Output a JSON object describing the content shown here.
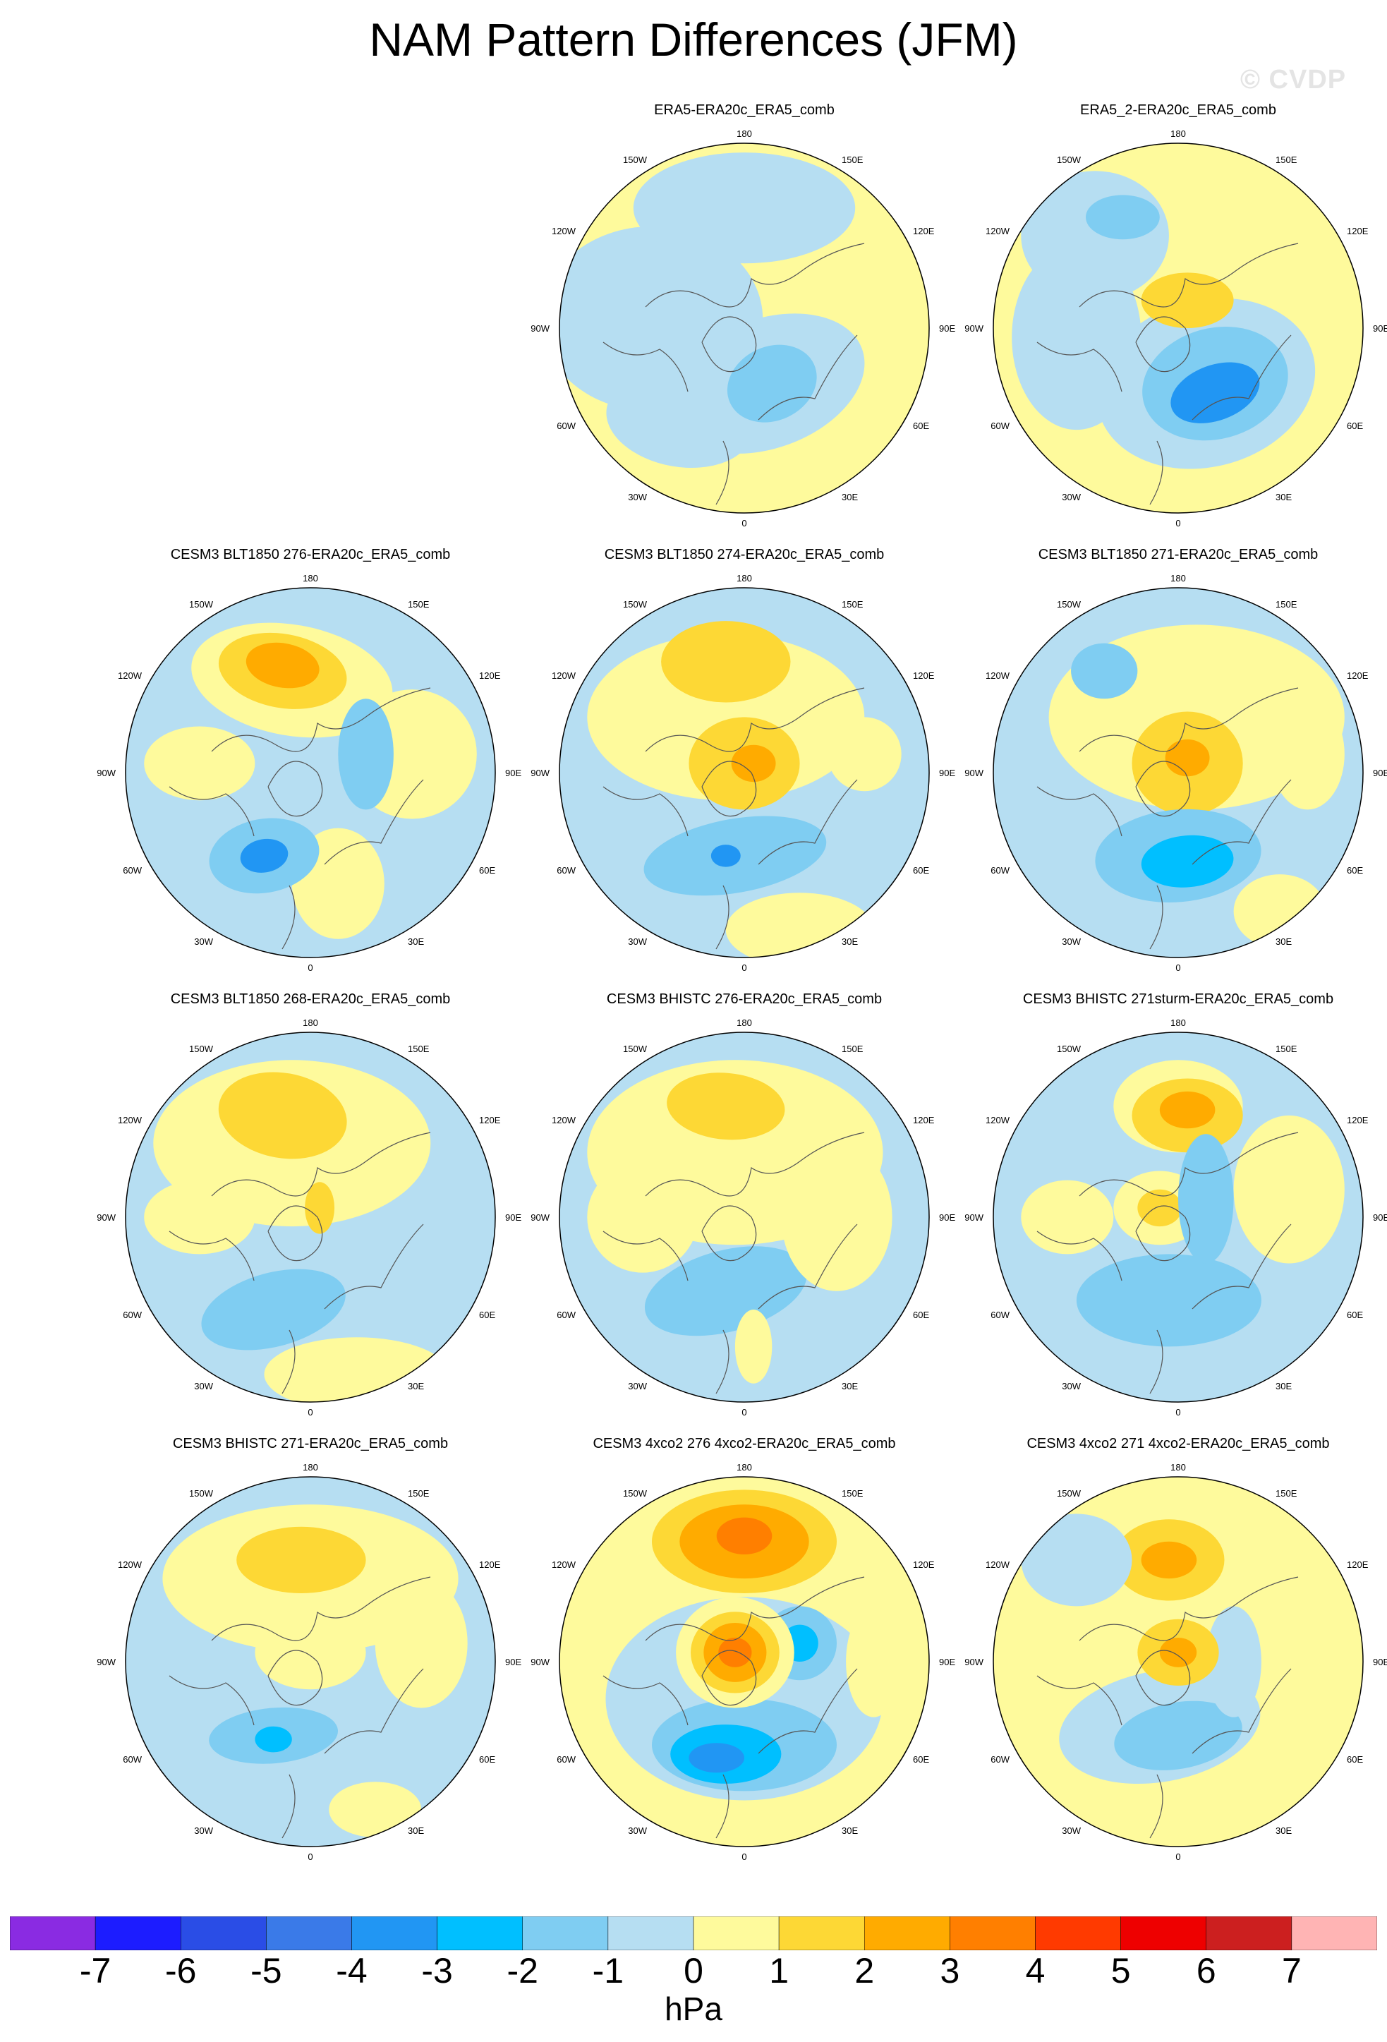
{
  "title": "NAM Pattern Differences (JFM)",
  "watermark": "© CVDP",
  "units": "hPa",
  "lon_labels": {
    "top": "180",
    "bottom": "0",
    "left": "90W",
    "right": "90E",
    "top_left": "150W",
    "top_right": "150E",
    "upper_left": "120W",
    "upper_right": "120E",
    "lower_left": "60W",
    "lower_right": "60E",
    "bottom_left": "30W",
    "bottom_right": "30E"
  },
  "colorbar": {
    "colors": [
      "#8a2be2",
      "#1c1cff",
      "#2a4de6",
      "#3a7ae8",
      "#2196f3",
      "#00bfff",
      "#7fcdf2",
      "#b6def2",
      "#fefa9c",
      "#fdd835",
      "#ffab00",
      "#ff7f00",
      "#ff3a00",
      "#ee0000",
      "#cc1f1f",
      "#ffb4b4"
    ],
    "labels": [
      "-7",
      "-6",
      "-5",
      "-4",
      "-3",
      "-2",
      "-1",
      "0",
      "1",
      "2",
      "3",
      "4",
      "5",
      "6",
      "7"
    ]
  },
  "panels": [
    {
      "title": "ERA5-ERA20c_ERA5_comb",
      "base": "#fefa9c",
      "blobs": [
        [
          -0.5,
          0.05,
          0.6,
          0.5,
          0,
          "#b6def2"
        ],
        [
          0.12,
          -0.3,
          0.55,
          0.35,
          20,
          "#b6def2"
        ],
        [
          -0.35,
          -0.5,
          0.4,
          0.25,
          -10,
          "#b6def2"
        ],
        [
          -0.2,
          0.55,
          0.25,
          0.13,
          -5,
          "#7fcdf2"
        ],
        [
          0.15,
          -0.3,
          0.25,
          0.2,
          25,
          "#7fcdf2"
        ],
        [
          0.0,
          0.65,
          0.6,
          0.3,
          0,
          "#b6def2"
        ]
      ]
    },
    {
      "title": "ERA5_2-ERA20c_ERA5_comb",
      "base": "#fefa9c",
      "blobs": [
        [
          -0.45,
          0.5,
          0.4,
          0.35,
          0,
          "#b6def2"
        ],
        [
          -0.55,
          -0.05,
          0.35,
          0.5,
          0,
          "#b6def2"
        ],
        [
          0.15,
          -0.3,
          0.6,
          0.45,
          15,
          "#b6def2"
        ],
        [
          0.2,
          -0.3,
          0.4,
          0.3,
          15,
          "#7fcdf2"
        ],
        [
          0.2,
          -0.35,
          0.25,
          0.15,
          20,
          "#2196f3"
        ],
        [
          -0.3,
          0.6,
          0.2,
          0.12,
          0,
          "#7fcdf2"
        ],
        [
          0.05,
          0.15,
          0.25,
          0.15,
          0,
          "#fdd835"
        ]
      ]
    },
    {
      "title": "CESM3 BLT1850 276-ERA20c_ERA5_comb",
      "base": "#b6def2",
      "blobs": [
        [
          -0.1,
          0.5,
          0.55,
          0.3,
          -10,
          "#fefa9c"
        ],
        [
          -0.15,
          0.55,
          0.35,
          0.2,
          -10,
          "#fdd835"
        ],
        [
          -0.15,
          0.58,
          0.2,
          0.12,
          -10,
          "#ffab00"
        ],
        [
          0.55,
          0.1,
          0.35,
          0.35,
          0,
          "#fefa9c"
        ],
        [
          -0.6,
          0.05,
          0.3,
          0.2,
          0,
          "#fefa9c"
        ],
        [
          0.15,
          -0.6,
          0.25,
          0.3,
          0,
          "#fefa9c"
        ],
        [
          -0.25,
          -0.45,
          0.3,
          0.2,
          10,
          "#7fcdf2"
        ],
        [
          -0.25,
          -0.45,
          0.13,
          0.09,
          10,
          "#2196f3"
        ],
        [
          0.3,
          0.1,
          0.15,
          0.3,
          0,
          "#7fcdf2"
        ]
      ]
    },
    {
      "title": "CESM3 BLT1850 274-ERA20c_ERA5_comb",
      "base": "#b6def2",
      "blobs": [
        [
          -0.1,
          0.3,
          0.75,
          0.45,
          0,
          "#fefa9c"
        ],
        [
          -0.1,
          0.6,
          0.35,
          0.22,
          0,
          "#fdd835"
        ],
        [
          0.0,
          0.05,
          0.3,
          0.25,
          0,
          "#fdd835"
        ],
        [
          0.05,
          0.05,
          0.12,
          0.1,
          0,
          "#ffab00"
        ],
        [
          -0.05,
          -0.45,
          0.5,
          0.2,
          10,
          "#7fcdf2"
        ],
        [
          -0.1,
          -0.45,
          0.08,
          0.06,
          0,
          "#2196f3"
        ],
        [
          0.3,
          -0.85,
          0.4,
          0.2,
          0,
          "#fefa9c"
        ],
        [
          0.65,
          0.1,
          0.2,
          0.2,
          0,
          "#fefa9c"
        ]
      ]
    },
    {
      "title": "CESM3 BLT1850 271-ERA20c_ERA5_comb",
      "base": "#b6def2",
      "blobs": [
        [
          0.1,
          0.3,
          0.8,
          0.5,
          0,
          "#fefa9c"
        ],
        [
          -0.4,
          0.55,
          0.18,
          0.15,
          0,
          "#7fcdf2"
        ],
        [
          0.05,
          0.05,
          0.3,
          0.28,
          0,
          "#fdd835"
        ],
        [
          0.05,
          0.08,
          0.12,
          0.1,
          0,
          "#ffab00"
        ],
        [
          0.0,
          -0.45,
          0.45,
          0.25,
          5,
          "#7fcdf2"
        ],
        [
          0.05,
          -0.48,
          0.25,
          0.14,
          5,
          "#00bfff"
        ],
        [
          0.55,
          -0.75,
          0.25,
          0.2,
          0,
          "#fefa9c"
        ],
        [
          0.7,
          0.1,
          0.2,
          0.3,
          0,
          "#fefa9c"
        ]
      ]
    },
    {
      "title": "CESM3 BLT1850 268-ERA20c_ERA5_comb",
      "base": "#b6def2",
      "blobs": [
        [
          -0.1,
          0.4,
          0.75,
          0.45,
          0,
          "#fefa9c"
        ],
        [
          -0.15,
          0.55,
          0.35,
          0.23,
          -10,
          "#fdd835"
        ],
        [
          0.05,
          0.05,
          0.08,
          0.14,
          0,
          "#fdd835"
        ],
        [
          -0.2,
          -0.5,
          0.4,
          0.2,
          15,
          "#7fcdf2"
        ],
        [
          0.25,
          -0.85,
          0.5,
          0.2,
          0,
          "#fefa9c"
        ],
        [
          -0.6,
          0.0,
          0.3,
          0.2,
          0,
          "#fefa9c"
        ]
      ]
    },
    {
      "title": "CESM3 BHISTC 276-ERA20c_ERA5_comb",
      "base": "#b6def2",
      "blobs": [
        [
          -0.05,
          0.35,
          0.8,
          0.5,
          0,
          "#fefa9c"
        ],
        [
          -0.1,
          0.6,
          0.32,
          0.18,
          -5,
          "#fdd835"
        ],
        [
          -0.1,
          -0.4,
          0.45,
          0.22,
          15,
          "#7fcdf2"
        ],
        [
          0.05,
          -0.7,
          0.1,
          0.2,
          0,
          "#fefa9c"
        ],
        [
          0.5,
          0.0,
          0.3,
          0.4,
          0,
          "#fefa9c"
        ],
        [
          -0.55,
          0.0,
          0.3,
          0.3,
          0,
          "#fefa9c"
        ]
      ]
    },
    {
      "title": "CESM3 BHISTC 271sturm-ERA20c_ERA5_comb",
      "base": "#b6def2",
      "blobs": [
        [
          0.0,
          0.6,
          0.35,
          0.25,
          0,
          "#fefa9c"
        ],
        [
          0.05,
          0.55,
          0.3,
          0.2,
          0,
          "#fdd835"
        ],
        [
          0.05,
          0.58,
          0.15,
          0.1,
          0,
          "#ffab00"
        ],
        [
          0.6,
          0.15,
          0.3,
          0.4,
          0,
          "#fefa9c"
        ],
        [
          -0.6,
          0.0,
          0.25,
          0.2,
          0,
          "#fefa9c"
        ],
        [
          -0.1,
          0.05,
          0.25,
          0.2,
          0,
          "#fefa9c"
        ],
        [
          -0.1,
          0.05,
          0.12,
          0.1,
          0,
          "#fdd835"
        ],
        [
          -0.05,
          -0.45,
          0.5,
          0.25,
          0,
          "#7fcdf2"
        ],
        [
          0.15,
          0.1,
          0.15,
          0.35,
          0,
          "#7fcdf2"
        ]
      ]
    },
    {
      "title": "CESM3 BHISTC 271-ERA20c_ERA5_comb",
      "base": "#b6def2",
      "blobs": [
        [
          0.0,
          0.45,
          0.8,
          0.4,
          0,
          "#fefa9c"
        ],
        [
          -0.05,
          0.55,
          0.35,
          0.18,
          0,
          "#fdd835"
        ],
        [
          0.0,
          0.05,
          0.3,
          0.2,
          0,
          "#fefa9c"
        ],
        [
          0.6,
          0.1,
          0.25,
          0.35,
          0,
          "#fefa9c"
        ],
        [
          -0.2,
          -0.4,
          0.35,
          0.15,
          5,
          "#7fcdf2"
        ],
        [
          -0.2,
          -0.42,
          0.1,
          0.07,
          0,
          "#00bfff"
        ],
        [
          0.35,
          -0.8,
          0.25,
          0.15,
          0,
          "#fefa9c"
        ]
      ]
    },
    {
      "title": "CESM3 4xco2 276 4xco2-ERA20c_ERA5_comb",
      "base": "#fefa9c",
      "blobs": [
        [
          0.0,
          0.65,
          0.5,
          0.28,
          0,
          "#fdd835"
        ],
        [
          0.0,
          0.65,
          0.35,
          0.2,
          0,
          "#ffab00"
        ],
        [
          0.0,
          0.68,
          0.15,
          0.1,
          0,
          "#ff7f00"
        ],
        [
          0.0,
          -0.2,
          0.75,
          0.55,
          0,
          "#b6def2"
        ],
        [
          0.0,
          -0.45,
          0.5,
          0.25,
          0,
          "#7fcdf2"
        ],
        [
          -0.1,
          -0.5,
          0.3,
          0.16,
          0,
          "#00bfff"
        ],
        [
          -0.15,
          -0.52,
          0.15,
          0.08,
          0,
          "#2196f3"
        ],
        [
          0.3,
          0.1,
          0.2,
          0.2,
          0,
          "#7fcdf2"
        ],
        [
          0.3,
          0.1,
          0.1,
          0.1,
          0,
          "#00bfff"
        ],
        [
          -0.05,
          0.05,
          0.32,
          0.3,
          0,
          "#fefa9c"
        ],
        [
          -0.05,
          0.05,
          0.24,
          0.22,
          0,
          "#fdd835"
        ],
        [
          -0.05,
          0.05,
          0.17,
          0.16,
          0,
          "#ffab00"
        ],
        [
          -0.05,
          0.05,
          0.09,
          0.08,
          0,
          "#ff7f00"
        ],
        [
          0.7,
          0.0,
          0.15,
          0.3,
          0,
          "#fefa9c"
        ]
      ]
    },
    {
      "title": "CESM3 4xco2 271 4xco2-ERA20c_ERA5_comb",
      "base": "#fefa9c",
      "blobs": [
        [
          0.0,
          0.6,
          0.4,
          0.3,
          0,
          "#fefa9c"
        ],
        [
          -0.05,
          0.55,
          0.3,
          0.22,
          0,
          "#fdd835"
        ],
        [
          -0.05,
          0.55,
          0.15,
          0.1,
          0,
          "#ffab00"
        ],
        [
          -0.55,
          0.55,
          0.3,
          0.25,
          0,
          "#b6def2"
        ],
        [
          -0.1,
          -0.35,
          0.55,
          0.3,
          10,
          "#b6def2"
        ],
        [
          0.0,
          -0.4,
          0.35,
          0.18,
          10,
          "#7fcdf2"
        ],
        [
          0.3,
          0.0,
          0.15,
          0.3,
          0,
          "#b6def2"
        ],
        [
          0.0,
          0.05,
          0.22,
          0.18,
          0,
          "#fdd835"
        ],
        [
          0.0,
          0.05,
          0.1,
          0.08,
          0,
          "#ffab00"
        ],
        [
          0.35,
          -0.8,
          0.3,
          0.15,
          0,
          "#fefa9c"
        ]
      ]
    }
  ]
}
